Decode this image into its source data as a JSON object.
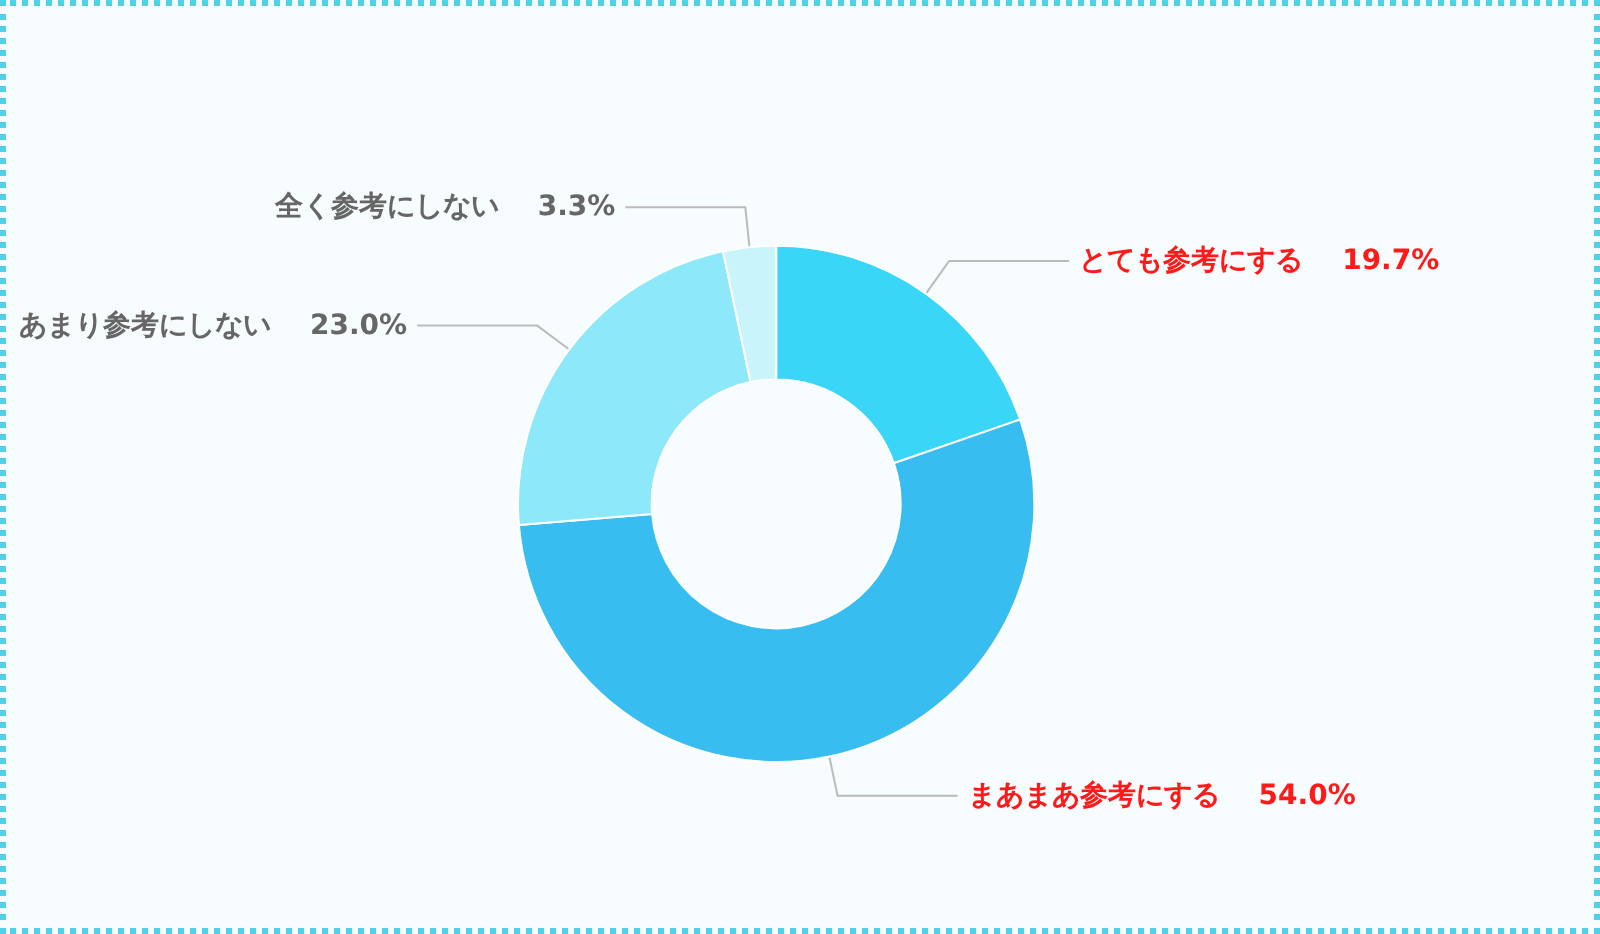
{
  "chart_data": {
    "type": "donut",
    "categories": [
      "とても参考にする",
      "まあまあ参考にする",
      "あまり参考にしない",
      "全く参考にしない"
    ],
    "values": [
      19.7,
      54.0,
      23.0,
      3.3
    ],
    "colors": [
      "#3ad6f7",
      "#38bdf0",
      "#8de9fa",
      "#c9f4fc"
    ],
    "value_labels": [
      "19.7%",
      "54.0%",
      "23.0%",
      "3.3%"
    ],
    "legend": false
  }
}
